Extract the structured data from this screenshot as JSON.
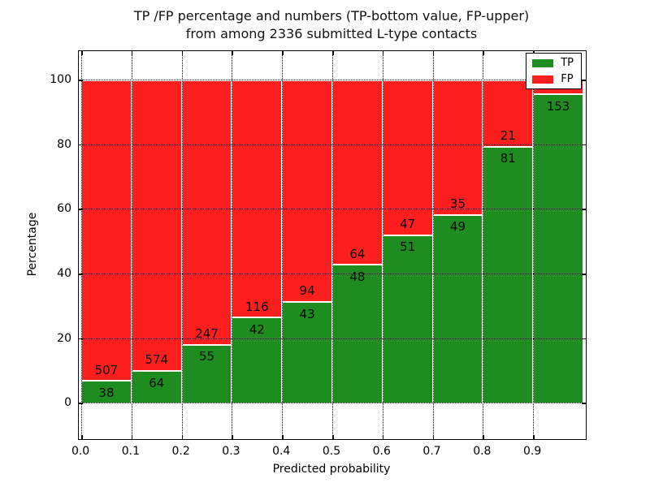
{
  "title": {
    "line1": "TP /FP percentage and numbers (TP-bottom value, FP-upper)",
    "line2": "from among 2336 submitted L-type contacts"
  },
  "axes": {
    "xlabel": "Predicted probability",
    "ylabel": "Percentage",
    "xtick_labels": [
      "0.0",
      "0.1",
      "0.2",
      "0.3",
      "0.4",
      "0.5",
      "0.6",
      "0.7",
      "0.8",
      "0.9"
    ],
    "ytick_labels": [
      "0",
      "20",
      "40",
      "60",
      "80",
      "100"
    ]
  },
  "legend": {
    "entries": [
      {
        "label": "TP",
        "color": "#1e8c1e"
      },
      {
        "label": "FP",
        "color": "#fd1e1e"
      }
    ]
  },
  "colors": {
    "tp": "#1e8c1e",
    "fp": "#fd1e1e",
    "grid": "#000000",
    "frame": "#000000",
    "label_text": "#0a0a0a"
  },
  "chart_data": {
    "type": "bar",
    "stacked": true,
    "percent_normalized": true,
    "title": "TP /FP percentage and numbers (TP-bottom value, FP-upper) from among 2336 submitted L-type contacts",
    "xlabel": "Predicted probability",
    "ylabel": "Percentage",
    "total_contacts": 2336,
    "bin_width": 0.1,
    "bin_starts": [
      0.0,
      0.1,
      0.2,
      0.3,
      0.4,
      0.5,
      0.6,
      0.7,
      0.8,
      0.9
    ],
    "series": [
      {
        "name": "TP",
        "counts": [
          38,
          64,
          55,
          42,
          43,
          48,
          51,
          49,
          81,
          153
        ]
      },
      {
        "name": "FP",
        "counts": [
          507,
          574,
          247,
          116,
          94,
          64,
          47,
          35,
          21,
          7
        ]
      }
    ],
    "fp_label_visible": [
      true,
      true,
      true,
      true,
      true,
      true,
      true,
      true,
      true,
      false
    ],
    "tp_label_visible": [
      true,
      true,
      true,
      true,
      true,
      true,
      true,
      true,
      true,
      true
    ],
    "xticks": [
      0.0,
      0.1,
      0.2,
      0.3,
      0.4,
      0.5,
      0.6,
      0.7,
      0.8,
      0.9
    ],
    "yticks": [
      0,
      20,
      40,
      60,
      80,
      100
    ],
    "xlim": [
      -0.005,
      1.005
    ],
    "ylim": [
      -11,
      109
    ],
    "grid": "dotted",
    "legend_position": "upper right"
  }
}
